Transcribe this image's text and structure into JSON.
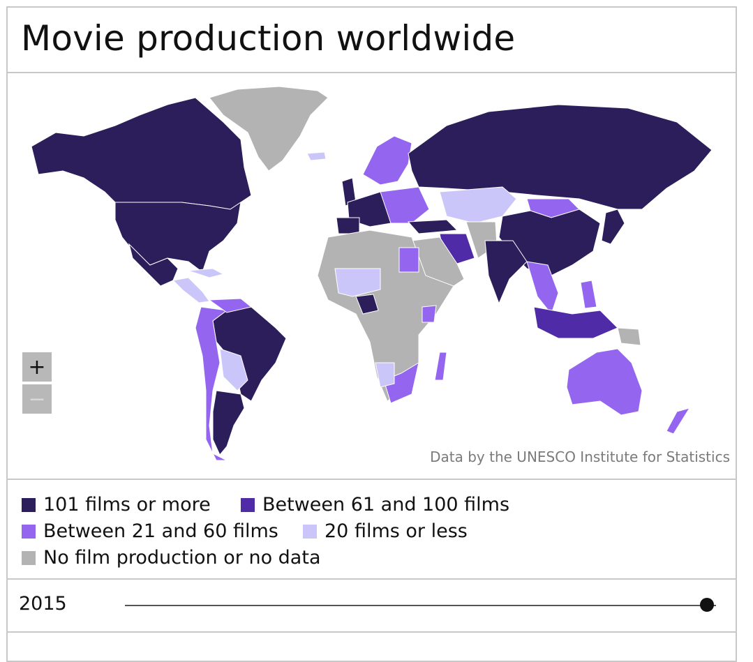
{
  "title": "Movie production worldwide",
  "credit": "Data by the UNESCO Institute for Statistics",
  "zoom": {
    "in_label": "+",
    "out_label": "−"
  },
  "legend": [
    {
      "label": "101 films or more",
      "color": "#2b1e5a"
    },
    {
      "label": "Between 61 and 100 films",
      "color": "#4f2ba8"
    },
    {
      "label": "Between 21 and 60 films",
      "color": "#9466f0"
    },
    {
      "label": "20 films or less",
      "color": "#cbc6f9"
    },
    {
      "label": "No film production or no data",
      "color": "#b3b3b3"
    }
  ],
  "slider": {
    "year": "2015",
    "position_fraction": 1.0
  },
  "map_colors": {
    "cat1": "#2b1e5a",
    "cat2": "#4f2ba8",
    "cat3": "#9466f0",
    "cat4": "#cbc6f9",
    "nodata": "#b3b3b3"
  }
}
